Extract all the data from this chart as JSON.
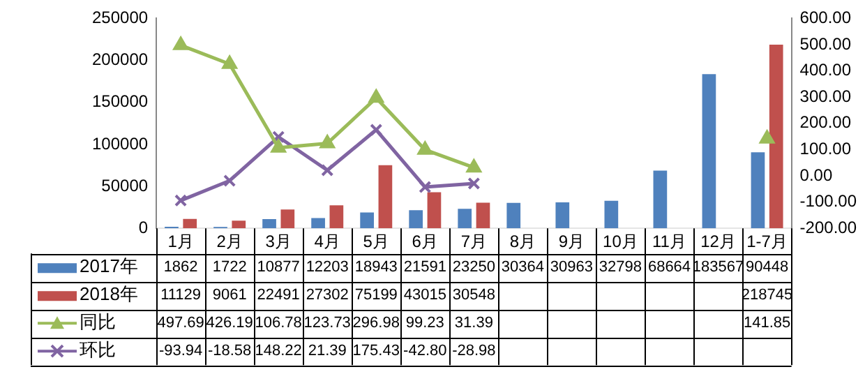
{
  "chart_data": {
    "type": "bar",
    "categories": [
      "1月",
      "2月",
      "3月",
      "4月",
      "5月",
      "6月",
      "7月",
      "8月",
      "9月",
      "10月",
      "11月",
      "12月",
      "1-7月"
    ],
    "series": [
      {
        "name": "2017年",
        "color": "#4f81bd",
        "values": [
          1862,
          1722,
          10877,
          12203,
          18943,
          21591,
          23250,
          30364,
          30963,
          32798,
          68664,
          183567,
          90448
        ],
        "value_labels": [
          "1862",
          "1722",
          "10877",
          "12203",
          "18943",
          "21591",
          "23250",
          "30364",
          "30963",
          "32798",
          "68664",
          "183567",
          "90448"
        ]
      },
      {
        "name": "2018年",
        "color": "#c0504d",
        "values": [
          11129,
          9061,
          22491,
          27302,
          75199,
          43015,
          30548,
          null,
          null,
          null,
          null,
          null,
          218745
        ],
        "value_labels": [
          "11129",
          "9061",
          "22491",
          "27302",
          "75199",
          "43015",
          "30548",
          null,
          null,
          null,
          null,
          null,
          "218745"
        ]
      },
      {
        "name": "同比",
        "type": "line",
        "axis": "y2",
        "marker": "triangle",
        "color": "#9bbb59",
        "values": [
          497.69,
          426.19,
          106.78,
          123.73,
          296.98,
          99.23,
          31.39,
          null,
          null,
          null,
          null,
          null,
          141.85
        ],
        "value_labels": [
          "497.69",
          "426.19",
          "106.78",
          "123.73",
          "296.98",
          "99.23",
          "31.39",
          null,
          null,
          null,
          null,
          null,
          "141.85"
        ]
      },
      {
        "name": "环比",
        "type": "line",
        "axis": "y2",
        "marker": "cross",
        "color": "#8064a2",
        "values": [
          -93.94,
          -18.58,
          148.22,
          21.39,
          175.43,
          -42.8,
          -28.98,
          null,
          null,
          null,
          null,
          null,
          null
        ],
        "value_labels": [
          "-93.94",
          "-18.58",
          "148.22",
          "21.39",
          "175.43",
          "-42.80",
          "-28.98",
          null,
          null,
          null,
          null,
          null,
          null
        ]
      }
    ],
    "ylim": [
      0,
      250000
    ],
    "yticks": [
      0,
      50000,
      100000,
      150000,
      200000,
      250000
    ],
    "y2lim": [
      -200,
      600
    ],
    "y2ticks": [
      {
        "value": -200,
        "label": "-200.00"
      },
      {
        "value": -100,
        "label": "-100.00"
      },
      {
        "value": 0,
        "label": "0.00"
      },
      {
        "value": 100,
        "label": "100.00"
      },
      {
        "value": 200,
        "label": "200.00"
      },
      {
        "value": 300,
        "label": "300.00"
      },
      {
        "value": 400,
        "label": "400.00"
      },
      {
        "value": 500,
        "label": "500.00"
      },
      {
        "value": 600,
        "label": "600.00"
      }
    ],
    "grid": false,
    "legend": "bottom left"
  }
}
